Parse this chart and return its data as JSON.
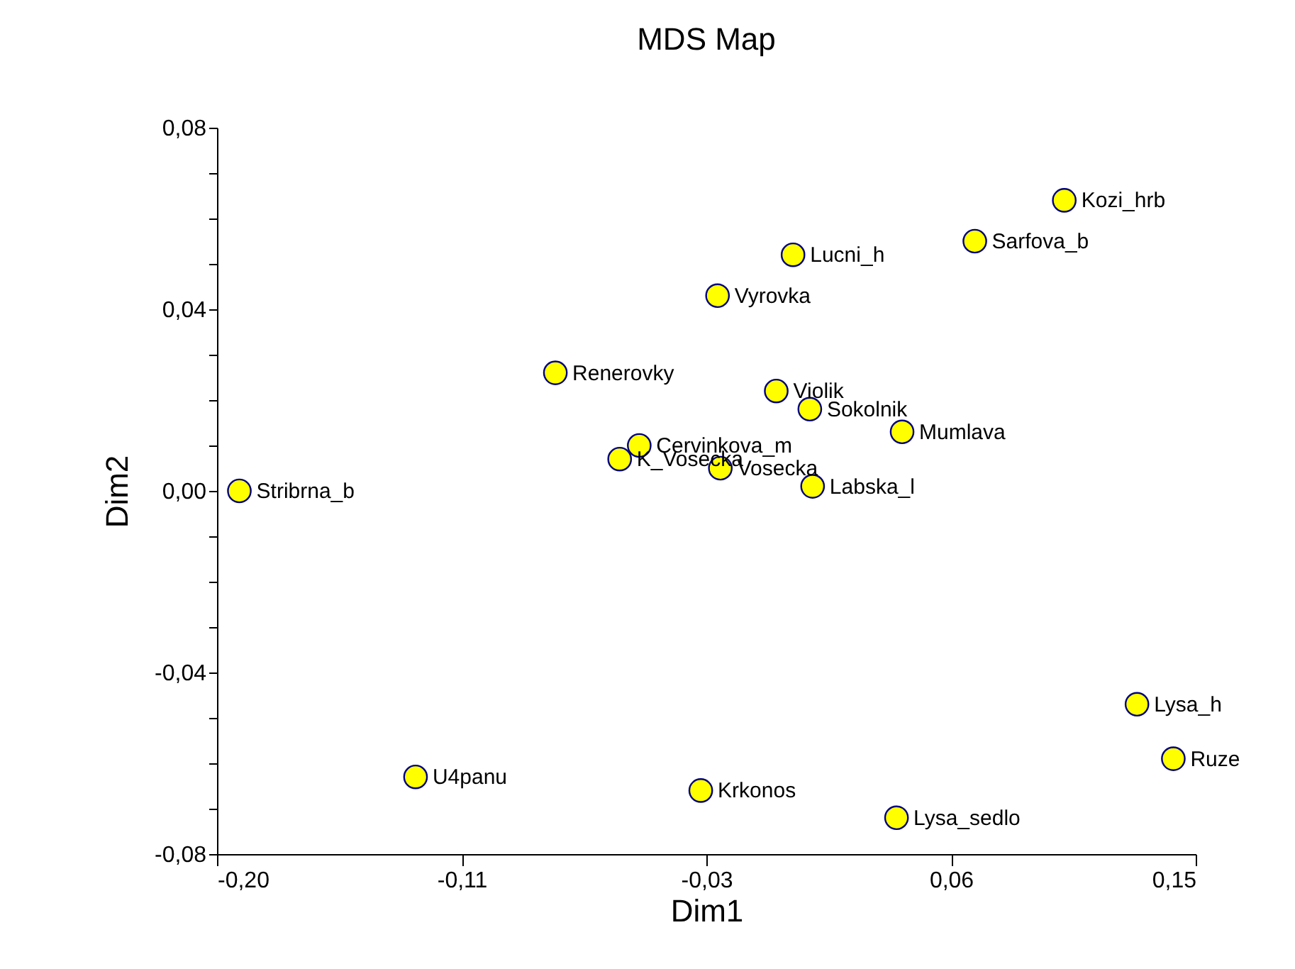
{
  "chart_data": {
    "type": "scatter",
    "title": "MDS Map",
    "xlabel": "Dim1",
    "ylabel": "Dim2",
    "x": [
      -0.192,
      -0.129,
      -0.079,
      -0.056,
      -0.049,
      -0.02,
      -0.027,
      -0.021,
      0.0,
      0.006,
      0.012,
      0.013,
      0.045,
      0.043,
      0.071,
      0.103,
      0.129,
      0.142
    ],
    "series": [
      {
        "color": "#ffff00",
        "values": [
          0.0,
          -0.063,
          0.026,
          0.007,
          0.01,
          0.005,
          -0.066,
          0.043,
          0.022,
          0.052,
          0.018,
          0.001,
          0.013,
          -0.072,
          0.055,
          0.064,
          -0.047,
          -0.059
        ]
      }
    ],
    "annotations": [
      {
        "text": "Stribrna_b",
        "x": -0.192,
        "y": 0.0
      },
      {
        "text": "U4panu",
        "x": -0.129,
        "y": -0.063
      },
      {
        "text": "Renerovky",
        "x": -0.079,
        "y": 0.026
      },
      {
        "text": "K_Vosecka",
        "x": -0.056,
        "y": 0.007
      },
      {
        "text": "Cervinkova_m",
        "x": -0.049,
        "y": 0.01
      },
      {
        "text": "Vosecka",
        "x": -0.02,
        "y": 0.005
      },
      {
        "text": "Krkonos",
        "x": -0.027,
        "y": -0.066
      },
      {
        "text": "Vyrovka",
        "x": -0.021,
        "y": 0.043
      },
      {
        "text": "Violik",
        "x": 0.0,
        "y": 0.022
      },
      {
        "text": "Lucni_h",
        "x": 0.006,
        "y": 0.052
      },
      {
        "text": "Sokolnik",
        "x": 0.012,
        "y": 0.018
      },
      {
        "text": "Labska_l",
        "x": 0.013,
        "y": 0.001
      },
      {
        "text": "Mumlava",
        "x": 0.045,
        "y": 0.013
      },
      {
        "text": "Lysa_sedlo",
        "x": 0.043,
        "y": -0.072
      },
      {
        "text": "Sarfova_b",
        "x": 0.071,
        "y": 0.055
      },
      {
        "text": "Kozi_hrb",
        "x": 0.103,
        "y": 0.064
      },
      {
        "text": "Lysa_h",
        "x": 0.129,
        "y": -0.047
      },
      {
        "text": "Ruze",
        "x": 0.142,
        "y": -0.059
      }
    ],
    "xlim": [
      -0.2,
      0.15
    ],
    "xticks": [
      {
        "value": -0.2,
        "label": "-0,20"
      },
      {
        "value": -0.1125,
        "label": "-0,11"
      },
      {
        "value": -0.025,
        "label": "-0,03"
      },
      {
        "value": 0.0625,
        "label": "0,06"
      },
      {
        "value": 0.15,
        "label": "0,15"
      }
    ],
    "ylim": [
      -0.08,
      0.08
    ],
    "yticks": [
      {
        "value": -0.08,
        "label": "-0,08"
      },
      {
        "value": -0.07,
        "label": null
      },
      {
        "value": -0.06,
        "label": null
      },
      {
        "value": -0.05,
        "label": null
      },
      {
        "value": -0.04,
        "label": "-0,04"
      },
      {
        "value": -0.03,
        "label": null
      },
      {
        "value": -0.02,
        "label": null
      },
      {
        "value": -0.01,
        "label": null
      },
      {
        "value": 0,
        "label": "0,00"
      },
      {
        "value": 0.01,
        "label": null
      },
      {
        "value": 0.02,
        "label": null
      },
      {
        "value": 0.03,
        "label": null
      },
      {
        "value": 0.04,
        "label": "0,04"
      },
      {
        "value": 0.05,
        "label": null
      },
      {
        "value": 0.06,
        "label": null
      },
      {
        "value": 0.07,
        "label": null
      },
      {
        "value": 0.08,
        "label": "0,08"
      }
    ],
    "marker": "circle",
    "grid": false,
    "legend": false
  }
}
